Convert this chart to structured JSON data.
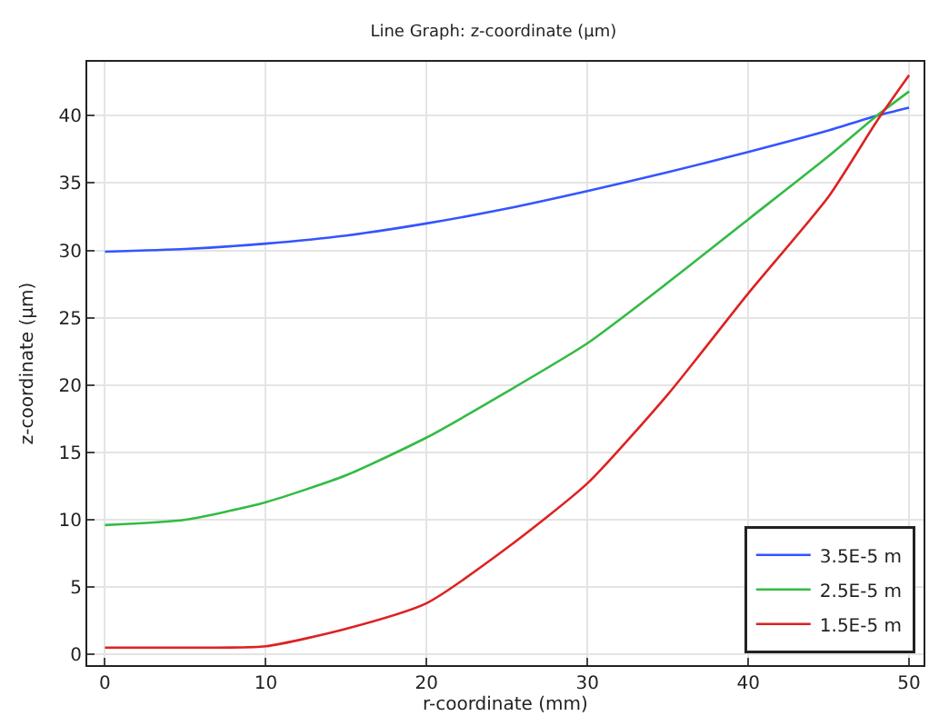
{
  "chart_data": {
    "type": "line",
    "title": "Line Graph: z-coordinate (µm)",
    "xlabel": "r-coordinate (mm)",
    "ylabel": "z-coordinate (µm)",
    "x": [
      0,
      5,
      10,
      15,
      20,
      25,
      30,
      35,
      40,
      45,
      48,
      50
    ],
    "series": [
      {
        "name": "3.5E-5 m",
        "color": "#3355ff",
        "values": [
          29.9,
          30.1,
          30.5,
          31.1,
          32.0,
          33.1,
          34.4,
          35.8,
          37.3,
          38.9,
          40.0,
          40.6
        ]
      },
      {
        "name": "2.5E-5 m",
        "color": "#33bb44",
        "values": [
          9.6,
          10.0,
          11.3,
          13.3,
          16.1,
          19.5,
          23.1,
          27.6,
          32.3,
          37.0,
          40.0,
          41.8
        ]
      },
      {
        "name": "1.5E-5 m",
        "color": "#dd2222",
        "values": [
          0.5,
          0.5,
          0.6,
          1.9,
          3.8,
          7.9,
          12.7,
          19.3,
          26.8,
          34.0,
          39.6,
          43.0
        ]
      }
    ],
    "xlim": [
      -1.1,
      50.9
    ],
    "ylim": [
      -0.8,
      44
    ],
    "xticks": [
      0,
      10,
      20,
      30,
      40,
      50
    ],
    "yticks": [
      0,
      5,
      10,
      15,
      20,
      25,
      30,
      35,
      40
    ],
    "grid": true,
    "legend": "bottom right",
    "marker": "none",
    "line_style": "solid"
  }
}
